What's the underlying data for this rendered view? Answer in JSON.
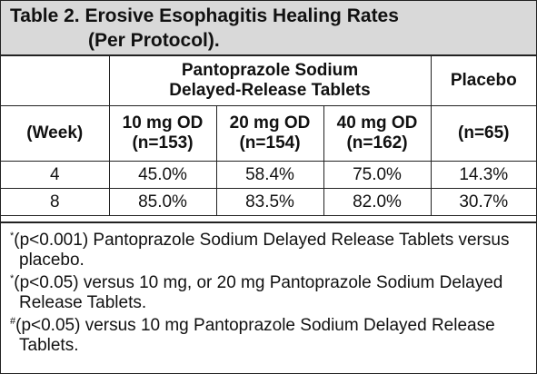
{
  "title": {
    "line1": "Table 2. Erosive Esophagitis Healing Rates",
    "line2": "(Per Protocol)."
  },
  "table": {
    "group_header": {
      "line1": "Pantoprazole Sodium",
      "line2": "Delayed-Release Tablets"
    },
    "placebo_header": "Placebo",
    "week_header": "(Week)",
    "dose_headers": [
      {
        "line1": "10 mg OD",
        "line2": "(n=153)"
      },
      {
        "line1": "20 mg OD",
        "line2": "(n=154)"
      },
      {
        "line1": "40 mg OD",
        "line2": "(n=162)"
      }
    ],
    "placebo_n": "(n=65)",
    "rows": [
      {
        "week": "4",
        "values": [
          "45.0%",
          "58.4%",
          "75.0%",
          "14.3%"
        ]
      },
      {
        "week": "8",
        "values": [
          "85.0%",
          "83.5%",
          "82.0%",
          "30.7%"
        ]
      }
    ]
  },
  "footnotes": [
    {
      "mark": "*",
      "text": "(p<0.001) Pantoprazole Sodium Delayed Release Tablets versus placebo."
    },
    {
      "mark": "*",
      "text": "(p<0.05) versus 10 mg, or 20 mg Pantoprazole Sodium Delayed Release Tablets."
    },
    {
      "mark": "#",
      "text": "(p<0.05) versus 10 mg Pantoprazole Sodium Delayed Release Tablets."
    }
  ]
}
